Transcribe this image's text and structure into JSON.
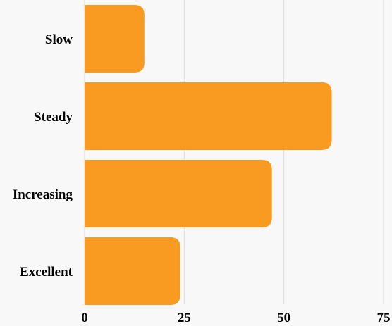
{
  "chart_data": {
    "type": "bar",
    "orientation": "horizontal",
    "categories": [
      "Slow",
      "Steady",
      "Increasing",
      "Excellent"
    ],
    "values": [
      15,
      62,
      47,
      24
    ],
    "xlim": [
      0,
      75
    ],
    "xticks": [
      "0",
      "25",
      "50",
      "75"
    ],
    "grid": true,
    "legend": "none",
    "title": "",
    "xlabel": "",
    "ylabel": "",
    "colors": {
      "bar": "#f99a21",
      "grid": "#dcdcdc",
      "background": "#f8f8f8"
    }
  }
}
